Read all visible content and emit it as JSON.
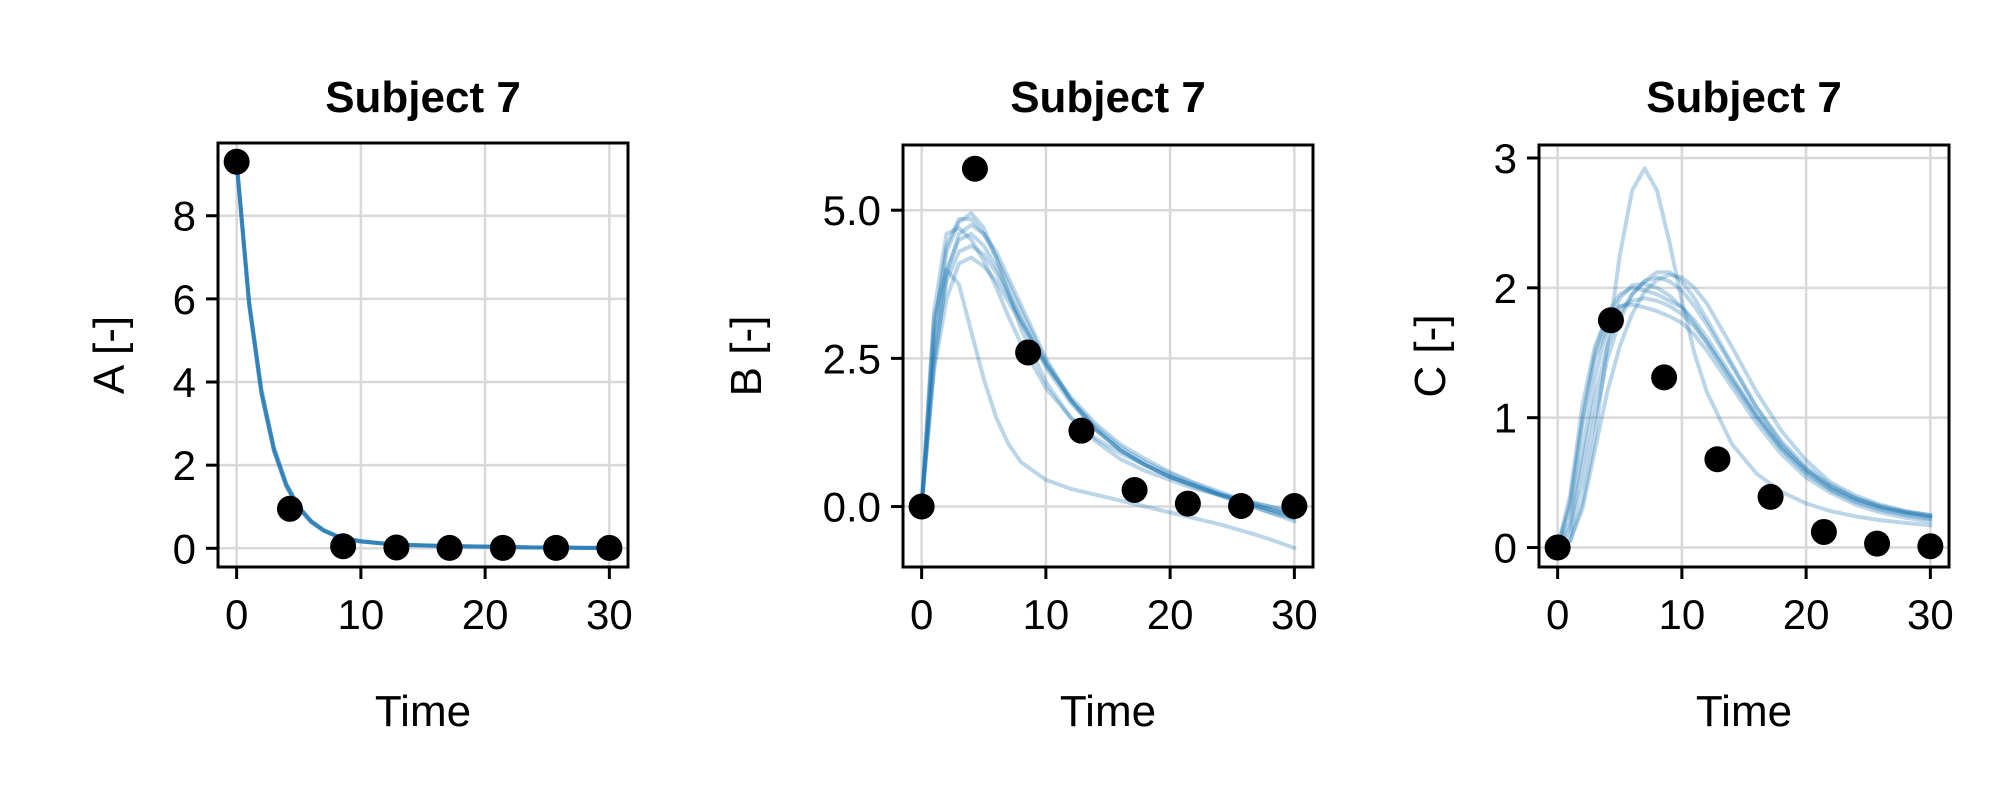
{
  "chart_data": [
    {
      "type": "line",
      "title": "Subject 7",
      "xlabel": "Time",
      "ylabel": "A [-]",
      "xlim": [
        -1.5,
        31.5
      ],
      "ylim": [
        -0.45,
        9.75
      ],
      "xticks": [
        0,
        10,
        20,
        30
      ],
      "xtick_labels": [
        "0",
        "10",
        "20",
        "30"
      ],
      "yticks": [
        0,
        2,
        4,
        6,
        8
      ],
      "ytick_labels": [
        "0",
        "2",
        "4",
        "6",
        "8"
      ],
      "grid": true,
      "color": "#1f77b4",
      "observations": {
        "x": [
          0,
          4.29,
          8.57,
          12.86,
          17.14,
          21.43,
          25.71,
          30
        ],
        "y": [
          9.3,
          0.95,
          0.05,
          0.02,
          0.01,
          0.01,
          0.01,
          0.01
        ]
      },
      "series": [
        {
          "x": [
            0,
            1,
            2,
            3,
            4,
            5,
            6,
            7,
            8,
            9,
            10,
            12,
            14,
            16,
            18,
            20,
            22,
            24,
            26,
            28,
            30
          ],
          "y": [
            9.3,
            5.9,
            3.75,
            2.38,
            1.52,
            0.98,
            0.64,
            0.43,
            0.3,
            0.22,
            0.17,
            0.11,
            0.08,
            0.06,
            0.05,
            0.04,
            0.03,
            0.02,
            0.02,
            0.01,
            0.01
          ]
        },
        {
          "x": [
            0,
            1,
            2,
            3,
            4,
            5,
            6,
            7,
            8,
            9,
            10,
            12,
            14,
            16,
            18,
            20,
            22,
            24,
            26,
            28,
            30
          ],
          "y": [
            9.3,
            5.95,
            3.8,
            2.42,
            1.55,
            1.0,
            0.66,
            0.44,
            0.31,
            0.23,
            0.17,
            0.11,
            0.08,
            0.06,
            0.05,
            0.04,
            0.03,
            0.02,
            0.02,
            0.01,
            0.01
          ]
        },
        {
          "x": [
            0,
            1,
            2,
            3,
            4,
            5,
            6,
            7,
            8,
            9,
            10,
            12,
            14,
            16,
            18,
            20,
            22,
            24,
            26,
            28,
            30
          ],
          "y": [
            9.3,
            5.85,
            3.7,
            2.34,
            1.49,
            0.96,
            0.63,
            0.42,
            0.29,
            0.21,
            0.16,
            0.11,
            0.08,
            0.06,
            0.05,
            0.04,
            0.03,
            0.02,
            0.02,
            0.01,
            0.01
          ]
        }
      ]
    },
    {
      "type": "line",
      "title": "Subject 7",
      "xlabel": "Time",
      "ylabel": "B [-]",
      "xlim": [
        -1.5,
        31.5
      ],
      "ylim": [
        -1.02,
        6.1
      ],
      "xticks": [
        0,
        10,
        20,
        30
      ],
      "xtick_labels": [
        "0",
        "10",
        "20",
        "30"
      ],
      "yticks": [
        0,
        2.5,
        5
      ],
      "ytick_labels": [
        "0.0",
        "2.5",
        "5.0"
      ],
      "grid": true,
      "color": "#1f77b4",
      "observations": {
        "x": [
          0,
          4.29,
          8.57,
          12.86,
          17.14,
          21.43,
          25.71,
          30
        ],
        "y": [
          0.0,
          5.7,
          2.6,
          1.28,
          0.28,
          0.05,
          0.01,
          0.01
        ]
      },
      "series": [
        {
          "x": [
            0,
            1,
            2,
            3,
            4,
            5,
            6,
            7,
            8,
            10,
            12,
            14,
            16,
            18,
            20,
            22,
            24,
            26,
            28,
            30
          ],
          "y": [
            0,
            2.9,
            4.3,
            4.8,
            4.95,
            4.7,
            4.2,
            3.6,
            3.0,
            2.1,
            1.5,
            1.1,
            0.8,
            0.6,
            0.45,
            0.3,
            0.2,
            0.1,
            0.0,
            -0.1
          ]
        },
        {
          "x": [
            0,
            1,
            2,
            3,
            4,
            5,
            6,
            7,
            8,
            10,
            12,
            14,
            16,
            18,
            20,
            22,
            24,
            26,
            28,
            30
          ],
          "y": [
            0,
            3.3,
            4.6,
            4.7,
            4.5,
            4.15,
            3.7,
            3.2,
            2.75,
            2.0,
            1.5,
            1.15,
            0.9,
            0.7,
            0.5,
            0.35,
            0.2,
            0.1,
            -0.05,
            -0.2
          ]
        },
        {
          "x": [
            0,
            1,
            2,
            3,
            4,
            5,
            6,
            7,
            8,
            10,
            12,
            14,
            16,
            18,
            20,
            22,
            24,
            26,
            28,
            30
          ],
          "y": [
            0,
            2.4,
            3.9,
            4.6,
            4.75,
            4.6,
            4.3,
            3.85,
            3.4,
            2.5,
            1.8,
            1.3,
            0.95,
            0.7,
            0.5,
            0.35,
            0.2,
            0.05,
            -0.05,
            -0.15
          ]
        },
        {
          "x": [
            0,
            1,
            2,
            3,
            4,
            5,
            6,
            7,
            8,
            10,
            12,
            14,
            16,
            18,
            20,
            22,
            24,
            26,
            28,
            30
          ],
          "y": [
            0,
            2.7,
            4.0,
            4.5,
            4.6,
            4.4,
            4.05,
            3.6,
            3.15,
            2.35,
            1.75,
            1.3,
            0.95,
            0.7,
            0.5,
            0.35,
            0.2,
            0.05,
            -0.1,
            -0.2
          ]
        },
        {
          "x": [
            0,
            1,
            2,
            3,
            4,
            5,
            6,
            7,
            8,
            10,
            12,
            14,
            16,
            18,
            20,
            22,
            24,
            26,
            28,
            30
          ],
          "y": [
            0,
            2.5,
            3.8,
            4.3,
            4.4,
            4.25,
            3.95,
            3.55,
            3.15,
            2.4,
            1.8,
            1.35,
            1.0,
            0.75,
            0.55,
            0.38,
            0.22,
            0.08,
            -0.05,
            -0.15
          ]
        },
        {
          "x": [
            0,
            1,
            2,
            3,
            4,
            5,
            6,
            7,
            8,
            10,
            12,
            14,
            16,
            18,
            20,
            22,
            24,
            26,
            28,
            30
          ],
          "y": [
            0,
            3.0,
            4.4,
            4.85,
            4.85,
            4.6,
            4.2,
            3.75,
            3.3,
            2.45,
            1.8,
            1.3,
            0.95,
            0.7,
            0.5,
            0.33,
            0.18,
            0.05,
            -0.1,
            -0.25
          ]
        },
        {
          "x": [
            0,
            1,
            2,
            3,
            4,
            5,
            6,
            7,
            8,
            10,
            12,
            14,
            16,
            18,
            20,
            22,
            24,
            26,
            28,
            30
          ],
          "y": [
            0,
            2.3,
            3.5,
            4.1,
            4.2,
            4.05,
            3.8,
            3.45,
            3.1,
            2.4,
            1.85,
            1.4,
            1.05,
            0.8,
            0.58,
            0.4,
            0.25,
            0.1,
            0.0,
            -0.1
          ]
        },
        {
          "x": [
            0,
            1,
            2,
            3,
            4,
            5,
            6,
            7,
            8,
            10,
            12,
            14,
            16,
            18,
            20,
            22,
            24,
            26,
            28,
            30
          ],
          "y": [
            0,
            3.2,
            4.0,
            3.75,
            2.95,
            2.15,
            1.5,
            1.05,
            0.75,
            0.45,
            0.3,
            0.2,
            0.1,
            0.0,
            -0.1,
            -0.2,
            -0.3,
            -0.42,
            -0.55,
            -0.7
          ]
        }
      ]
    },
    {
      "type": "line",
      "title": "Subject 7",
      "xlabel": "Time",
      "ylabel": "C [-]",
      "xlim": [
        -1.5,
        31.5
      ],
      "ylim": [
        -0.15,
        3.1
      ],
      "xticks": [
        0,
        10,
        20,
        30
      ],
      "xtick_labels": [
        "0",
        "10",
        "20",
        "30"
      ],
      "yticks": [
        0,
        1,
        2,
        3
      ],
      "ytick_labels": [
        "0",
        "1",
        "2",
        "3"
      ],
      "grid": true,
      "color": "#1f77b4",
      "observations": {
        "x": [
          0,
          4.29,
          8.57,
          12.86,
          17.14,
          21.43,
          25.71,
          30
        ],
        "y": [
          0.0,
          1.75,
          1.31,
          0.68,
          0.39,
          0.12,
          0.03,
          0.01
        ]
      },
      "series": [
        {
          "x": [
            0,
            1,
            2,
            3,
            4,
            5,
            6,
            7,
            8,
            9,
            10,
            11,
            12,
            14,
            16,
            18,
            20,
            22,
            24,
            26,
            28,
            30
          ],
          "y": [
            0,
            0.35,
            1.0,
            1.5,
            1.8,
            1.95,
            2.0,
            1.98,
            1.95,
            1.9,
            1.85,
            1.75,
            1.62,
            1.32,
            1.02,
            0.76,
            0.57,
            0.44,
            0.35,
            0.29,
            0.25,
            0.22
          ]
        },
        {
          "x": [
            0,
            1,
            2,
            3,
            4,
            5,
            6,
            7,
            8,
            9,
            10,
            11,
            12,
            14,
            16,
            18,
            20,
            22,
            24,
            26,
            28,
            30
          ],
          "y": [
            0,
            0.2,
            0.75,
            1.3,
            1.7,
            1.92,
            2.02,
            2.03,
            2.0,
            1.94,
            1.85,
            1.72,
            1.58,
            1.28,
            1.0,
            0.76,
            0.58,
            0.45,
            0.36,
            0.3,
            0.26,
            0.23
          ]
        },
        {
          "x": [
            0,
            1,
            2,
            3,
            4,
            5,
            6,
            7,
            8,
            9,
            10,
            11,
            12,
            14,
            16,
            18,
            20,
            22,
            24,
            26,
            28,
            30
          ],
          "y": [
            0,
            0.1,
            0.5,
            1.0,
            1.45,
            1.75,
            1.95,
            2.05,
            2.08,
            2.05,
            1.98,
            1.86,
            1.72,
            1.4,
            1.08,
            0.82,
            0.62,
            0.48,
            0.38,
            0.31,
            0.27,
            0.24
          ]
        },
        {
          "x": [
            0,
            1,
            2,
            3,
            4,
            5,
            6,
            7,
            8,
            9,
            10,
            11,
            12,
            14,
            16,
            18,
            20,
            22,
            24,
            26,
            28,
            30
          ],
          "y": [
            0,
            0.05,
            0.3,
            0.75,
            1.2,
            1.55,
            1.8,
            1.97,
            2.06,
            2.1,
            2.08,
            2.0,
            1.88,
            1.55,
            1.2,
            0.9,
            0.67,
            0.5,
            0.4,
            0.33,
            0.28,
            0.25
          ]
        },
        {
          "x": [
            0,
            1,
            2,
            3,
            4,
            5,
            6,
            7,
            8,
            9,
            10,
            11,
            12,
            14,
            16,
            18,
            20,
            22,
            24,
            26,
            28,
            30
          ],
          "y": [
            0,
            0.3,
            0.95,
            1.45,
            1.72,
            1.85,
            1.9,
            1.92,
            1.9,
            1.86,
            1.8,
            1.7,
            1.58,
            1.3,
            1.02,
            0.78,
            0.6,
            0.47,
            0.38,
            0.32,
            0.28,
            0.25
          ]
        },
        {
          "x": [
            0,
            1,
            2,
            3,
            4,
            5,
            6,
            7,
            8,
            9,
            10,
            11,
            12,
            14,
            16,
            18,
            20,
            22,
            24,
            26,
            28,
            30
          ],
          "y": [
            0,
            0.15,
            0.65,
            1.15,
            1.55,
            1.8,
            1.95,
            2.05,
            2.12,
            2.12,
            2.05,
            1.92,
            1.76,
            1.42,
            1.08,
            0.8,
            0.6,
            0.46,
            0.37,
            0.31,
            0.27,
            0.24
          ]
        },
        {
          "x": [
            0,
            1,
            2,
            3,
            4,
            5,
            6,
            7,
            8,
            9,
            10,
            11,
            12,
            14,
            16,
            18,
            20,
            22,
            24,
            26,
            28,
            30
          ],
          "y": [
            0,
            0.4,
            1.1,
            1.55,
            1.78,
            1.86,
            1.87,
            1.85,
            1.82,
            1.78,
            1.73,
            1.64,
            1.52,
            1.24,
            0.96,
            0.72,
            0.54,
            0.42,
            0.33,
            0.27,
            0.23,
            0.2
          ]
        },
        {
          "x": [
            0,
            1,
            2,
            3,
            4,
            5,
            6,
            7,
            8,
            9,
            10,
            11,
            12,
            14,
            16,
            18,
            20,
            22,
            24,
            26,
            28,
            30
          ],
          "y": [
            0,
            0.05,
            0.35,
            0.85,
            1.55,
            2.25,
            2.75,
            2.92,
            2.75,
            2.35,
            1.9,
            1.5,
            1.2,
            0.8,
            0.57,
            0.43,
            0.34,
            0.28,
            0.24,
            0.21,
            0.19,
            0.17
          ]
        }
      ]
    }
  ]
}
